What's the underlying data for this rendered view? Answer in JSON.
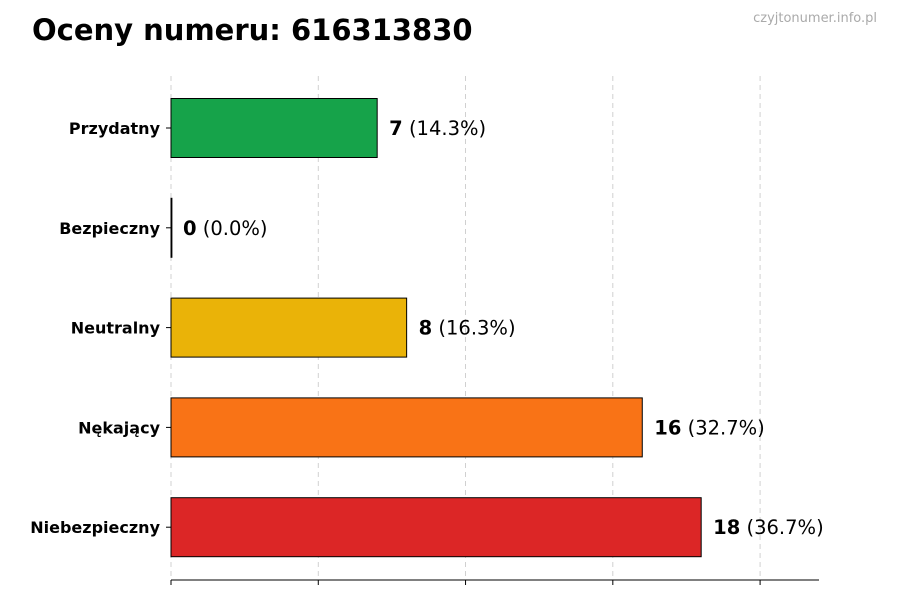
{
  "title": "Oceny numeru: 616313830",
  "watermark": "czyjtonumer.info.pl",
  "chart_data": {
    "type": "bar",
    "orientation": "horizontal",
    "title": "Oceny numeru: 616313830",
    "xlabel": "",
    "ylabel": "",
    "xlim": [
      0,
      22
    ],
    "x_ticks": [
      0,
      5,
      10,
      15,
      20
    ],
    "grid": "vertical dashed",
    "categories": [
      "Przydatny",
      "Bezpieczny",
      "Neutralny",
      "Nękający",
      "Niebezpieczny"
    ],
    "values": [
      7,
      0,
      8,
      16,
      18
    ],
    "percent_labels": [
      "(14.3%)",
      "(0.0%)",
      "(16.3%)",
      "(32.7%)",
      "(36.7%)"
    ],
    "colors": [
      "#16a34a",
      "#2563eb",
      "#eab308",
      "#f97316",
      "#dc2626"
    ]
  }
}
